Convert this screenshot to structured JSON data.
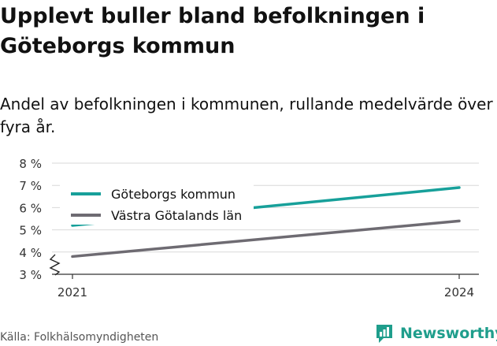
{
  "title": "Upplevt buller bland befolkningen i Göteborgs kommun",
  "subtitle": "Andel av befolkningen i kommunen, rullande medelvärde över fyra år.",
  "source": "Källa: Folkhälsomyndigheten",
  "brand": {
    "name": "Newsworthy",
    "icon": "newsworthy-logo-icon",
    "color": "#1f9e8c"
  },
  "chart_data": {
    "type": "line",
    "x": [
      "2021",
      "2024"
    ],
    "series": [
      {
        "name": "Göteborgs kommun",
        "values": [
          5.2,
          6.9
        ],
        "color": "#17a09a"
      },
      {
        "name": "Västra Götalands län",
        "values": [
          3.8,
          5.4
        ],
        "color": "#6e6b72"
      }
    ],
    "ylim": [
      3,
      8
    ],
    "yticks": [
      3,
      4,
      5,
      6,
      7,
      8
    ],
    "ytick_labels": [
      "3 %",
      "4 %",
      "5 %",
      "6 %",
      "7 %",
      "8 %"
    ],
    "xticks": [
      "2021",
      "2024"
    ],
    "xlabel": "",
    "ylabel": "",
    "grid": true,
    "axis_break": true,
    "legend_position": "top-left"
  }
}
